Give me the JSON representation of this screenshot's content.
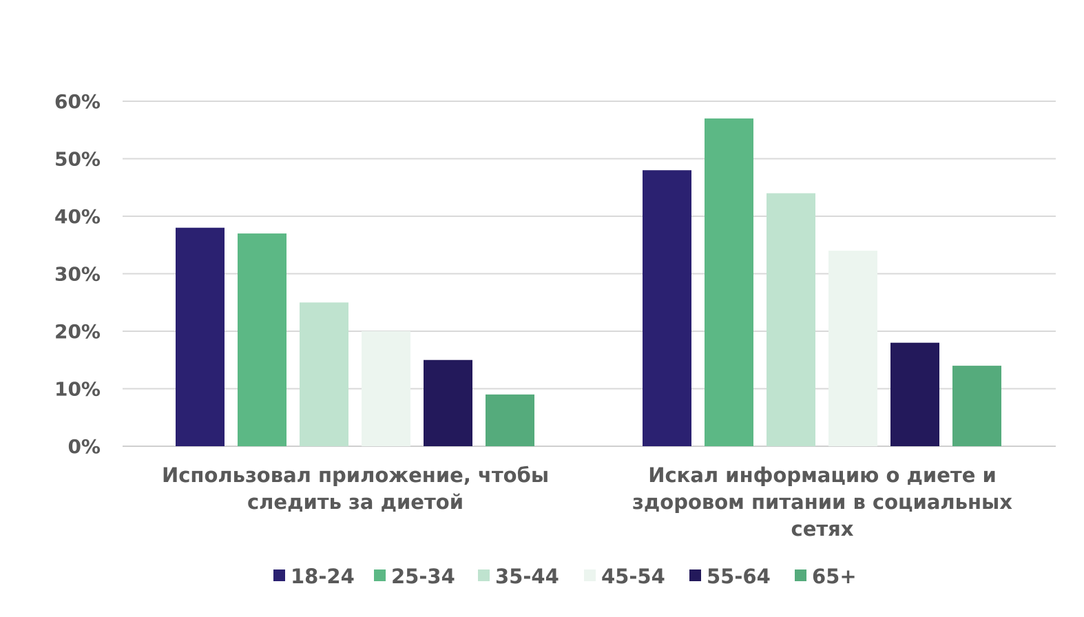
{
  "chart_data": {
    "type": "bar",
    "title": "",
    "xlabel": "",
    "ylabel": "",
    "categories": [
      [
        "Использовал приложение, чтобы",
        "следить за диетой"
      ],
      [
        "Искал информацию о диете и",
        "здоровом питании в социальных",
        "сетях"
      ]
    ],
    "series": [
      {
        "name": "18-24",
        "color": "#2b2171",
        "values": [
          38,
          48
        ]
      },
      {
        "name": "25-34",
        "color": "#5cb885",
        "values": [
          37,
          57
        ]
      },
      {
        "name": "35-44",
        "color": "#bfe3cf",
        "values": [
          25,
          44
        ]
      },
      {
        "name": "45-54",
        "color": "#ecf5ef",
        "values": [
          20,
          34
        ]
      },
      {
        "name": "55-64",
        "color": "#23195b",
        "values": [
          15,
          18
        ]
      },
      {
        "name": "65+",
        "color": "#55ab7c",
        "values": [
          9,
          14
        ]
      }
    ],
    "ylim": [
      0,
      60
    ],
    "yticks": [
      "0%",
      "10%",
      "20%",
      "30%",
      "40%",
      "50%",
      "60%"
    ],
    "yticks_values": [
      0,
      10,
      20,
      30,
      40,
      50,
      60
    ],
    "grid": true,
    "legend_position": "bottom"
  }
}
